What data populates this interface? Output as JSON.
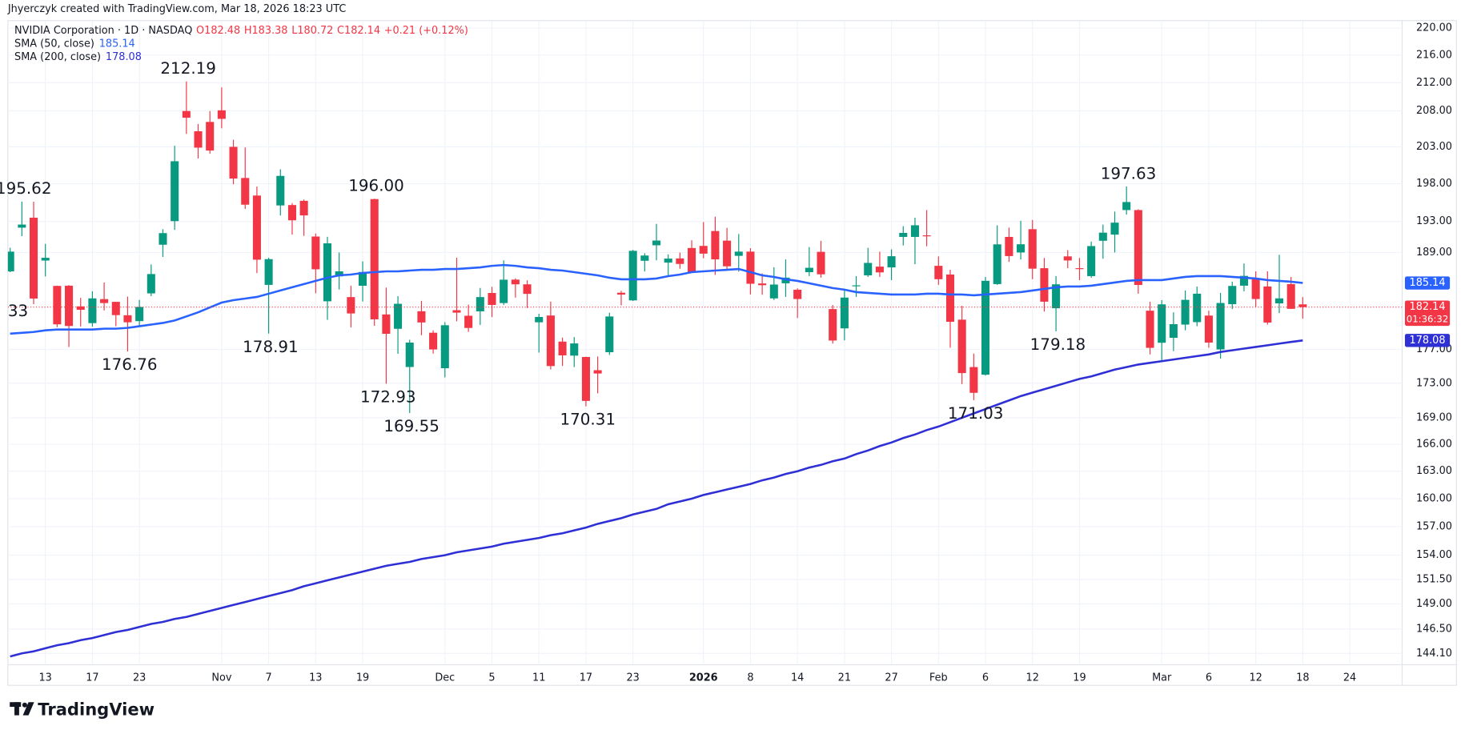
{
  "header": {
    "attribution": "Jhyerczyk created with TradingView.com, Mar 18, 2026 18:23 UTC",
    "symbol": "NVIDIA Corporation · 1D · NASDAQ",
    "ohlc": [
      "O182.48",
      "H183.38",
      "L180.72",
      "C182.14",
      "+0.21 (+0.12%)"
    ],
    "countdown": "01:36:32",
    "brand": "TradingView"
  },
  "chart_data": {
    "type": "candlestick",
    "categories": [
      null,
      null,
      null,
      "13",
      null,
      null,
      null,
      "17",
      null,
      null,
      null,
      "23",
      null,
      null,
      null,
      null,
      null,
      null,
      "Nov",
      null,
      null,
      null,
      "7",
      null,
      null,
      null,
      "13",
      null,
      null,
      null,
      "19",
      null,
      null,
      null,
      null,
      null,
      null,
      "Dec",
      null,
      null,
      null,
      "5",
      null,
      null,
      null,
      "11",
      null,
      null,
      null,
      "17",
      null,
      null,
      null,
      "23",
      null,
      null,
      null,
      null,
      null,
      "2026",
      null,
      null,
      null,
      "8",
      null,
      null,
      null,
      "14",
      null,
      null,
      null,
      "21",
      null,
      null,
      null,
      "27",
      null,
      null,
      null,
      "Feb",
      null,
      null,
      null,
      "6",
      null,
      null,
      null,
      "12",
      null,
      null,
      null,
      "19",
      null,
      null,
      null,
      null,
      null,
      null,
      "Mar",
      null,
      null,
      null,
      "6",
      null,
      null,
      null,
      "12",
      null,
      null,
      null,
      "18",
      null,
      null,
      null,
      "24"
    ],
    "open": [
      186.6,
      192.2,
      193.5,
      187.97,
      184.77,
      184.8,
      182.23,
      180.18,
      183.13,
      182.79,
      181.14,
      180.42,
      183.84,
      189.99,
      193.05,
      207.98,
      205.15,
      206.45,
      208.08,
      203,
      198.77,
      196.42,
      184.9,
      195.11,
      195.16,
      195.72,
      191.05,
      182.86,
      185.97,
      183.38,
      184.79,
      195.95,
      181.24,
      179.49,
      174.91,
      181.63,
      179.01,
      174.76,
      181.76,
      181.08,
      181.62,
      183.89,
      182.64,
      185.56,
      184.97,
      180.28,
      181.11,
      177.94,
      176.26,
      176.1,
      174.53,
      176.67,
      183.92,
      182.97,
      187.94,
      189.92,
      187.71,
      188.24,
      189.57,
      189.84,
      191.76,
      190.52,
      188.57,
      189.11,
      185.08,
      183.22,
      185.1,
      184.3,
      186.5,
      189.08,
      181.9,
      179.54,
      184.8,
      186.1,
      187.2,
      187.1,
      191.0,
      191.0,
      191.2,
      187.3,
      186.2,
      180.6,
      174.9,
      174.0,
      185.0,
      191.0,
      189.0,
      192.0,
      187.0,
      182.0,
      188.5,
      187.0,
      186.0,
      190.5,
      191.3,
      194.5,
      194.5,
      181.7,
      177.8,
      178.4,
      180.0,
      180.3,
      181.1,
      177.0,
      182.5,
      184.8,
      185.6,
      184.7,
      182.6,
      185.0,
      182.48,
      null,
      null,
      null,
      null
    ],
    "high": [
      189.6,
      195.62,
      195.6,
      190.11,
      184.8,
      184.87,
      183.28,
      184.1,
      185.2,
      182.79,
      183.44,
      183.03,
      187.47,
      192,
      203.15,
      212.19,
      206.16,
      207.97,
      211.34,
      203.97,
      202.92,
      197.62,
      188.32,
      199.94,
      195.42,
      195.89,
      191.44,
      191.01,
      189,
      184.8,
      187.86,
      196,
      184.56,
      183.5,
      178.16,
      182.91,
      179.29,
      180.3,
      188.33,
      182.45,
      184.52,
      184.66,
      188,
      185.72,
      185.48,
      181.32,
      182.82,
      178.42,
      178.49,
      176.13,
      176.15,
      181.45,
      184.16,
      189.33,
      188.91,
      192.69,
      188.76,
      188.99,
      190.56,
      192.93,
      193.63,
      192.17,
      191.37,
      189.55,
      186.34,
      187.12,
      188.11,
      184.46,
      189.69,
      190.49,
      182.4,
      184.2,
      186.0,
      189.6,
      189.1,
      189.4,
      192.4,
      193.5,
      194.5,
      188.5,
      186.8,
      182.3,
      176.5,
      185.9,
      192.5,
      192.2,
      193.1,
      193.2,
      188.3,
      186.0,
      189.3,
      188.3,
      190.4,
      192.6,
      194.3,
      197.63,
      194.6,
      182.8,
      183.0,
      181.5,
      184.2,
      184.7,
      181.7,
      183.9,
      185.3,
      187.6,
      186.6,
      186.6,
      188.7,
      185.9,
      183.38,
      null,
      null,
      null,
      null
    ],
    "low": [
      186.5,
      191.1,
      182.5,
      185.96,
      179.7,
      177.29,
      179.77,
      179.75,
      181.73,
      179.8,
      176.76,
      179.79,
      183.5,
      188.43,
      191.91,
      204.78,
      201.41,
      202.07,
      205.56,
      197.93,
      194.65,
      186.38,
      178.91,
      193.79,
      191.3,
      191.13,
      183.85,
      180.58,
      184.32,
      179.65,
      182.83,
      179.85,
      172.93,
      176.48,
      169.55,
      178.71,
      176.5,
      173.68,
      180.4,
      179.11,
      179.96,
      180.91,
      182.4,
      183.32,
      182.04,
      176.62,
      174.62,
      175.03,
      174.9,
      170.31,
      171.82,
      176.34,
      182.35,
      182.9,
      186.59,
      188,
      185.91,
      186.93,
      186.49,
      188.26,
      186.15,
      186.82,
      186.56,
      183.71,
      183.67,
      183.02,
      183.4,
      180.8,
      186.0,
      185.8,
      177.7,
      178.1,
      183.4,
      185.9,
      185.9,
      185.5,
      189.9,
      187.5,
      189.8,
      184.9,
      177.2,
      172.9,
      171.03,
      173.9,
      184.9,
      187.8,
      188.1,
      185.6,
      181.6,
      179.18,
      187.0,
      185.5,
      185.8,
      188.2,
      189.0,
      193.9,
      183.8,
      176.4,
      175.6,
      176.8,
      179.3,
      179.8,
      177.2,
      175.9,
      181.9,
      184.1,
      182.2,
      180.0,
      181.4,
      181.9,
      180.72,
      null,
      null,
      null,
      null
    ],
    "close": [
      189.11,
      192.6,
      183.2,
      188.32,
      180.03,
      179.83,
      181.81,
      183.22,
      182.64,
      181.16,
      180.28,
      182.16,
      186.26,
      191.49,
      201.03,
      207.04,
      202.89,
      202.49,
      206.88,
      198.69,
      195.21,
      188.08,
      188.15,
      199.05,
      193.16,
      193.8,
      186.86,
      190.17,
      186.6,
      181.36,
      186.52,
      180.64,
      178.88,
      182.55,
      177.82,
      180.26,
      177.0,
      179.92,
      181.46,
      179.59,
      183.38,
      182.41,
      185.55,
      184.97,
      183.78,
      180.93,
      175.02,
      176.29,
      177.72,
      170.94,
      174.14,
      180.99,
      183.69,
      189.21,
      188.61,
      190.53,
      188.22,
      187.54,
      186.5,
      188.85,
      188.12,
      187.24,
      189.11,
      185.04,
      184.86,
      184.94,
      185.81,
      183.14,
      187.05,
      186.23,
      178.07,
      183.32,
      184.84,
      187.67,
      186.47,
      188.52,
      191.52,
      192.51,
      191.13,
      185.61,
      180.34,
      174.19,
      171.88,
      185.41,
      190.04,
      188.54,
      190.05,
      186.94,
      182.81,
      184.97,
      187.98,
      186.88,
      189.82,
      191.55,
      192.85,
      195.56,
      184.89,
      177.19,
      182.48,
      180.05,
      183.04,
      183.8,
      177.82,
      182.65,
      184.77,
      186.03,
      183.14,
      180.25,
      183.22,
      181.93,
      182.14,
      null,
      null,
      null,
      null
    ],
    "up_color": "#089981",
    "down_color": "#f23645",
    "series": [
      {
        "name": "SMA (50, close)",
        "color": "#2962ff",
        "values": [
          178.9,
          179.0,
          179.1,
          179.3,
          179.4,
          179.4,
          179.4,
          179.4,
          179.5,
          179.5,
          179.6,
          179.8,
          180.0,
          180.2,
          180.5,
          181.0,
          181.5,
          182.1,
          182.7,
          183.0,
          183.2,
          183.4,
          183.8,
          184.2,
          184.6,
          185.0,
          185.4,
          185.8,
          186.1,
          186.2,
          186.4,
          186.5,
          186.6,
          186.6,
          186.7,
          186.8,
          186.8,
          186.9,
          186.9,
          187.0,
          187.1,
          187.3,
          187.4,
          187.3,
          187.1,
          187.0,
          186.8,
          186.7,
          186.5,
          186.3,
          186.1,
          185.8,
          185.6,
          185.6,
          185.6,
          185.7,
          186.0,
          186.2,
          186.5,
          186.6,
          186.7,
          186.8,
          186.9,
          186.5,
          186.1,
          185.9,
          185.6,
          185.4,
          185.1,
          184.8,
          184.5,
          184.3,
          184.0,
          183.9,
          183.8,
          183.7,
          183.7,
          183.7,
          183.8,
          183.8,
          183.7,
          183.7,
          183.6,
          183.7,
          183.8,
          183.9,
          184.0,
          184.2,
          184.4,
          184.6,
          184.7,
          184.7,
          184.8,
          185.0,
          185.2,
          185.4,
          185.5,
          185.5,
          185.5,
          185.7,
          185.9,
          186.0,
          186.0,
          186.0,
          185.9,
          185.8,
          185.7,
          185.5,
          185.4,
          185.3,
          185.14,
          null,
          null,
          null,
          null
        ]
      },
      {
        "name": "SMA (200, close)",
        "color": "#2f2fd6",
        "values": [
          143.8,
          144.1,
          144.3,
          144.6,
          144.9,
          145.1,
          145.4,
          145.6,
          145.9,
          146.2,
          146.4,
          146.7,
          147.0,
          147.2,
          147.5,
          147.7,
          148.0,
          148.3,
          148.6,
          148.9,
          149.2,
          149.5,
          149.8,
          150.1,
          150.4,
          150.8,
          151.1,
          151.4,
          151.7,
          152.0,
          152.3,
          152.6,
          152.9,
          153.1,
          153.3,
          153.6,
          153.8,
          154.0,
          154.3,
          154.5,
          154.7,
          154.9,
          155.2,
          155.4,
          155.6,
          155.8,
          156.1,
          156.3,
          156.6,
          156.9,
          157.3,
          157.6,
          157.9,
          158.3,
          158.6,
          158.9,
          159.4,
          159.7,
          160.0,
          160.4,
          160.7,
          161.0,
          161.3,
          161.6,
          162.0,
          162.3,
          162.7,
          163.0,
          163.4,
          163.7,
          164.1,
          164.4,
          164.9,
          165.3,
          165.8,
          166.2,
          166.7,
          167.1,
          167.6,
          168.0,
          168.5,
          169.0,
          169.5,
          170.0,
          170.5,
          171.0,
          171.5,
          171.9,
          172.3,
          172.7,
          173.1,
          173.5,
          173.8,
          174.2,
          174.6,
          174.9,
          175.2,
          175.4,
          175.6,
          175.8,
          176.0,
          176.2,
          176.4,
          176.7,
          176.9,
          177.1,
          177.3,
          177.5,
          177.7,
          177.9,
          178.08,
          null,
          null,
          null,
          null
        ]
      }
    ],
    "ylim": [
      143.0,
      221.1
    ],
    "log_scale": true,
    "grid": true,
    "yticks": [
      {
        "value": 220,
        "label": "220.00"
      },
      {
        "value": 216,
        "label": "216.00"
      },
      {
        "value": 212,
        "label": "212.00"
      },
      {
        "value": 208,
        "label": "208.00"
      },
      {
        "value": 203,
        "label": "203.00"
      },
      {
        "value": 198,
        "label": "198.00"
      },
      {
        "value": 193,
        "label": "193.00"
      },
      {
        "value": 189,
        "label": "189.00"
      },
      {
        "value": 177,
        "label": "177.00"
      },
      {
        "value": 173,
        "label": "173.00"
      },
      {
        "value": 169,
        "label": "169.00"
      },
      {
        "value": 166,
        "label": "166.00"
      },
      {
        "value": 163,
        "label": "163.00"
      },
      {
        "value": 160,
        "label": "160.00"
      },
      {
        "value": 157,
        "label": "157.00"
      },
      {
        "value": 154,
        "label": "154.00"
      },
      {
        "value": 151.5,
        "label": "151.50"
      },
      {
        "value": 149,
        "label": "149.00"
      },
      {
        "value": 146.5,
        "label": "146.50"
      },
      {
        "value": 144.1,
        "label": "144.10"
      }
    ],
    "annotations": [
      {
        "value": 195.62,
        "label": "195.62"
      },
      {
        "value": 176.76,
        "label": "176.76"
      },
      {
        "value": 212.19,
        "label": "212.19"
      },
      {
        "value": 178.91,
        "label": "178.91"
      },
      {
        "value": 196,
        "label": "196.00"
      },
      {
        "value": 172.93,
        "label": "172.93"
      },
      {
        "value": 169.55,
        "label": "169.55"
      },
      {
        "value": 170.31,
        "label": "170.31"
      },
      {
        "value": 171.03,
        "label": "171.03"
      },
      {
        "value": 179.18,
        "label": "179.18"
      },
      {
        "value": 197.63,
        "label": "197.63"
      }
    ],
    "edge_label": "33"
  }
}
